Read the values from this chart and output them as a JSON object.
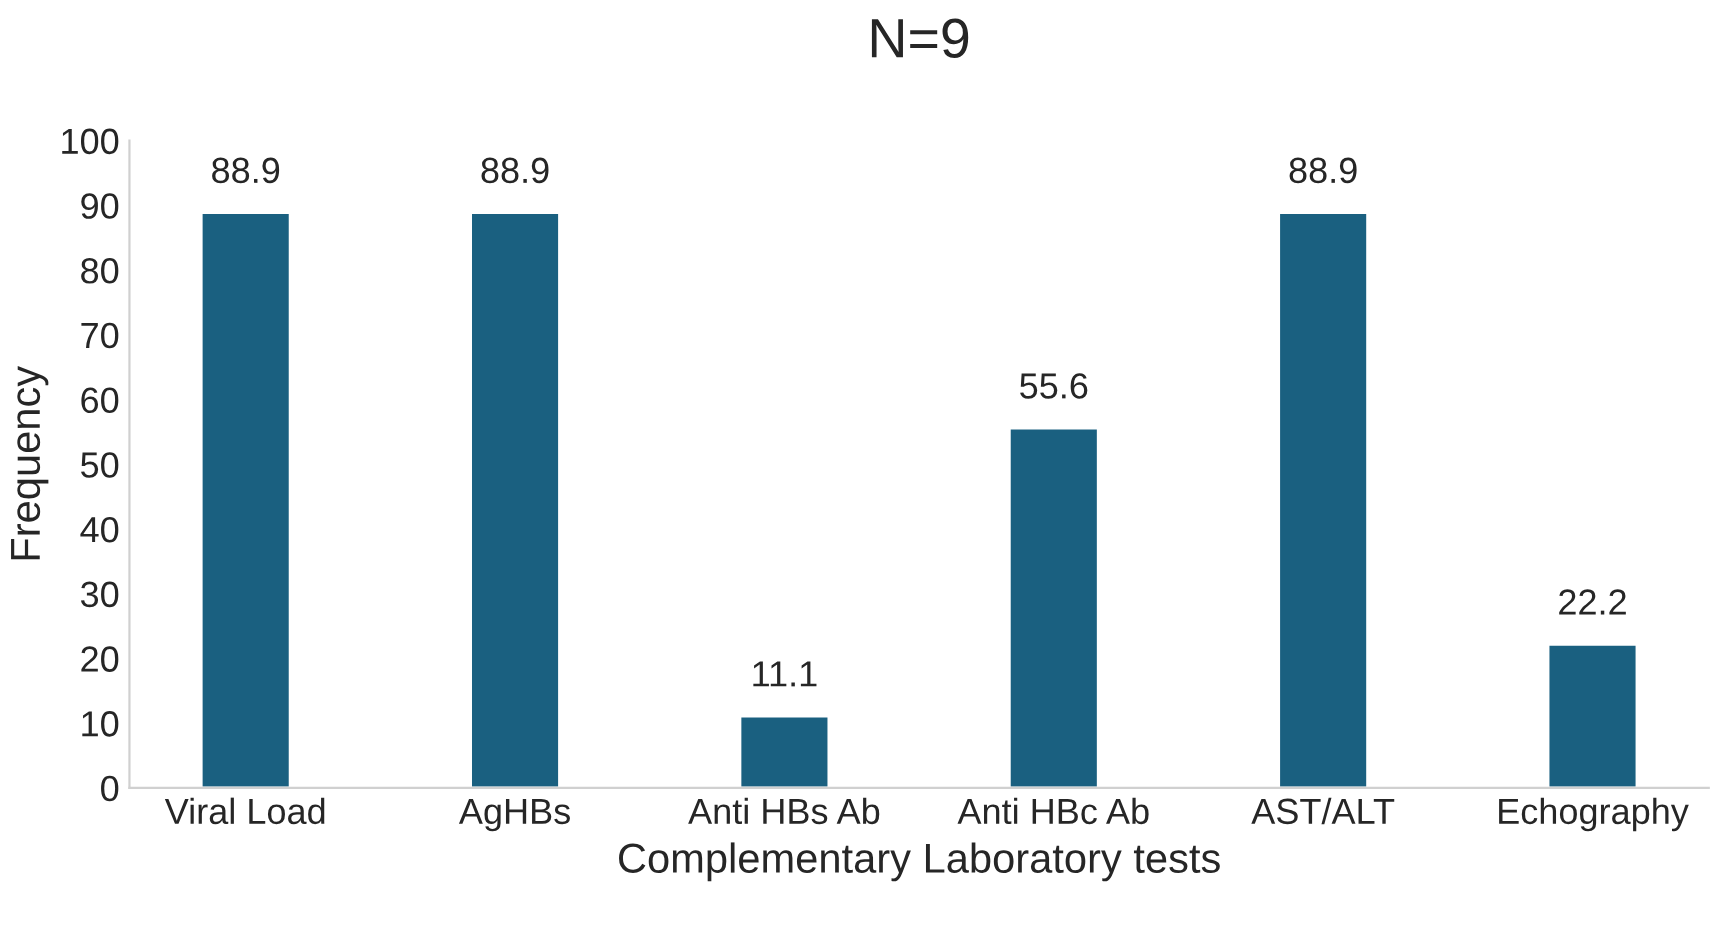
{
  "chart_data": {
    "type": "bar",
    "title": "N=9",
    "xlabel": "Complementary Laboratory tests",
    "ylabel": "Frequency",
    "categories": [
      "Viral Load",
      "AgHBs",
      "Anti HBs Ab",
      "Anti HBc Ab",
      "AST/ALT",
      "Echography"
    ],
    "values": [
      88.9,
      88.9,
      11.1,
      55.6,
      88.9,
      22.2
    ],
    "color": "#1a6080",
    "ylim": [
      0,
      100
    ],
    "yticks": [
      0,
      10,
      20,
      30,
      40,
      50,
      60,
      70,
      80,
      90,
      100
    ],
    "grid": false,
    "data_labels": true
  }
}
